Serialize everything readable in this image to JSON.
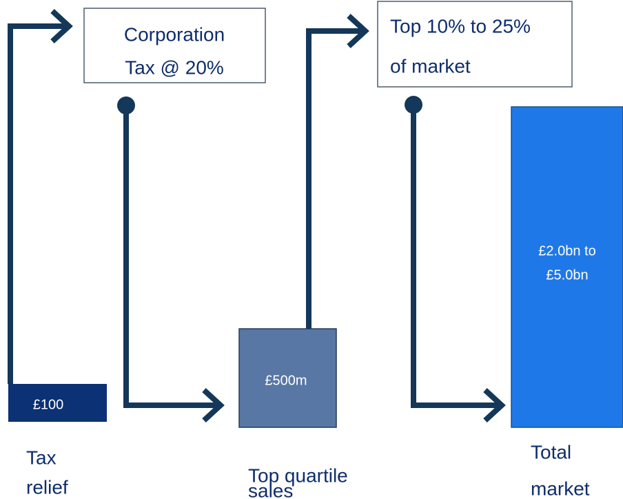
{
  "bars": [
    {
      "value_label": "£100",
      "caption": [
        "Tax",
        "relief"
      ]
    },
    {
      "value_label": "£500m",
      "caption": [
        "Top quartile",
        "sales"
      ]
    },
    {
      "value_label": [
        "£2.0bn to",
        "£5.0bn"
      ],
      "caption": [
        "Total",
        "market"
      ]
    }
  ],
  "boxes": [
    {
      "lines": [
        "Corporation",
        "Tax @ 20%"
      ]
    },
    {
      "lines": [
        "Top 10% to 25%",
        "of market"
      ]
    }
  ]
}
